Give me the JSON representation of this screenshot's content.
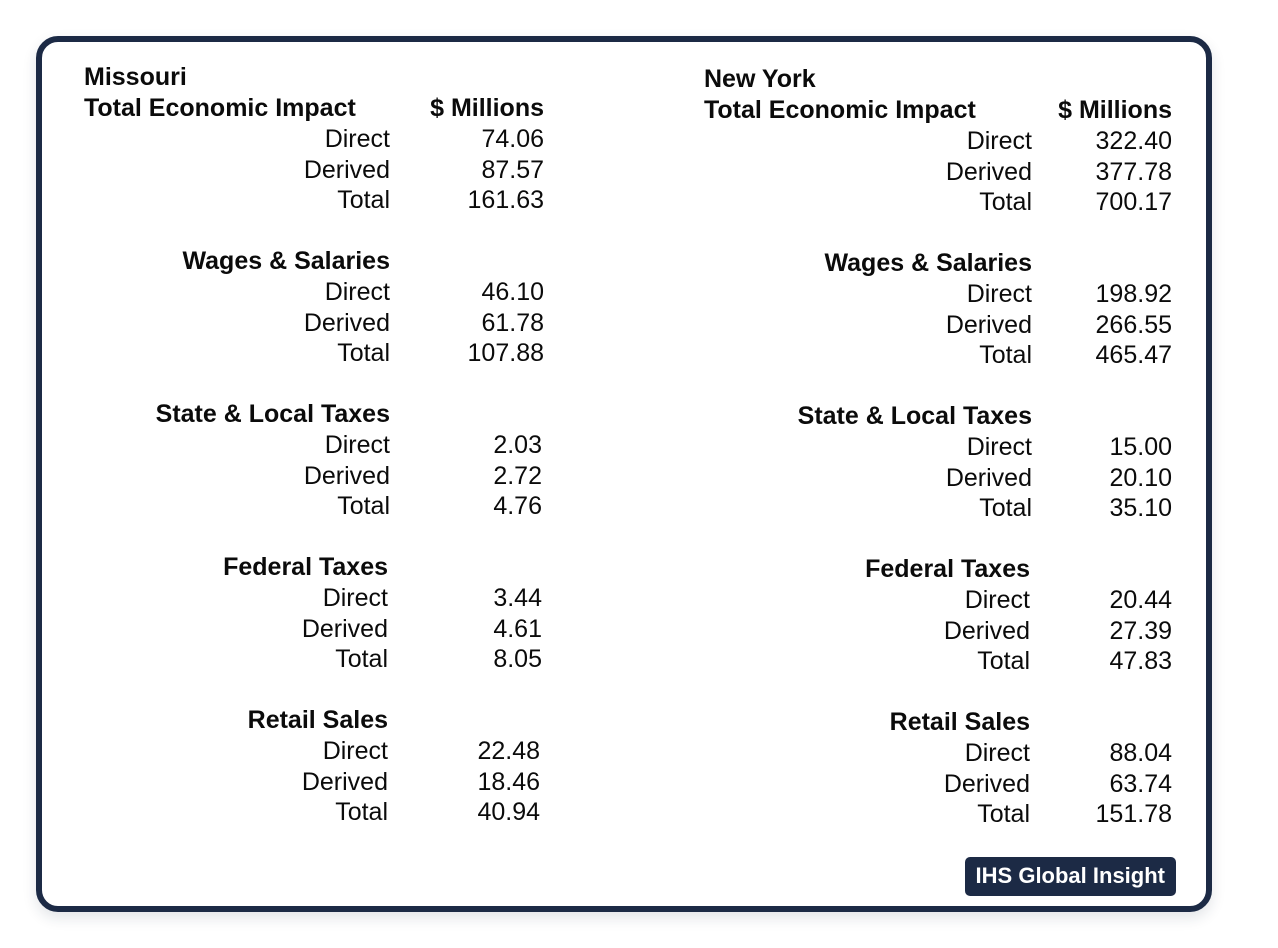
{
  "badge": "IHS Global Insight",
  "tables": [
    {
      "state": "Missouri",
      "heading": "Total Economic Impact",
      "unit": "$ Millions",
      "total_economic_impact": [
        {
          "label": "Direct",
          "value": "74.06"
        },
        {
          "label": "Derived",
          "value": "87.57"
        },
        {
          "label": "Total",
          "value": "161.63"
        }
      ],
      "sections": [
        {
          "title": "Wages & Salaries",
          "rows": [
            {
              "label": "Direct",
              "value": "46.10"
            },
            {
              "label": "Derived",
              "value": "61.78"
            },
            {
              "label": "Total",
              "value": "107.88"
            }
          ]
        },
        {
          "title": "State & Local Taxes",
          "rows": [
            {
              "label": "Direct",
              "value": "2.03"
            },
            {
              "label": "Derived",
              "value": "2.72"
            },
            {
              "label": "Total",
              "value": "4.76"
            }
          ]
        },
        {
          "title": "Federal Taxes",
          "rows": [
            {
              "label": "Direct",
              "value": "3.44"
            },
            {
              "label": "Derived",
              "value": "4.61"
            },
            {
              "label": "Total",
              "value": "8.05"
            }
          ]
        },
        {
          "title": "Retail Sales",
          "rows": [
            {
              "label": "Direct",
              "value": "22.48"
            },
            {
              "label": "Derived",
              "value": "18.46"
            },
            {
              "label": "Total",
              "value": "40.94"
            }
          ]
        }
      ]
    },
    {
      "state": "New York",
      "heading": "Total Economic Impact",
      "unit": "$ Millions",
      "total_economic_impact": [
        {
          "label": "Direct",
          "value": "322.40"
        },
        {
          "label": "Derived",
          "value": "377.78"
        },
        {
          "label": "Total",
          "value": "700.17"
        }
      ],
      "sections": [
        {
          "title": "Wages & Salaries",
          "rows": [
            {
              "label": "Direct",
              "value": "198.92"
            },
            {
              "label": "Derived",
              "value": "266.55"
            },
            {
              "label": "Total",
              "value": "465.47"
            }
          ]
        },
        {
          "title": "State & Local Taxes",
          "rows": [
            {
              "label": "Direct",
              "value": "15.00"
            },
            {
              "label": "Derived",
              "value": "20.10"
            },
            {
              "label": "Total",
              "value": "35.10"
            }
          ]
        },
        {
          "title": "Federal Taxes",
          "rows": [
            {
              "label": "Direct",
              "value": "20.44"
            },
            {
              "label": "Derived",
              "value": "27.39"
            },
            {
              "label": "Total",
              "value": "47.83"
            }
          ]
        },
        {
          "title": "Retail Sales",
          "rows": [
            {
              "label": "Direct",
              "value": "88.04"
            },
            {
              "label": "Derived",
              "value": "63.74"
            },
            {
              "label": "Total",
              "value": "151.78"
            }
          ]
        }
      ]
    }
  ]
}
